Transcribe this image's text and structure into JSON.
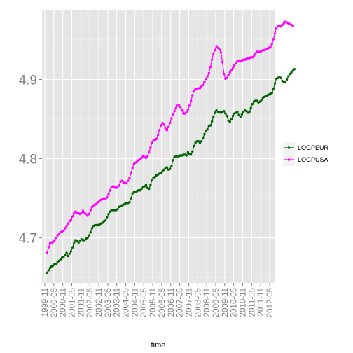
{
  "chart_data": {
    "type": "line",
    "title": "",
    "xlabel": "time",
    "ylabel": "",
    "ylim": [
      4.643,
      4.988
    ],
    "y_ticks": [
      "4.7",
      "4.8",
      "4.9"
    ],
    "y_tick_values": [
      4.7,
      4.8,
      4.9
    ],
    "x_ticks": [
      "1999-11",
      "2000-05",
      "2000-11",
      "2001-05",
      "2001-11",
      "2002-05",
      "2002-11",
      "2003-05",
      "2003-11",
      "2004-05",
      "2004-11",
      "2005-05",
      "2005-11",
      "2006-05",
      "2006-11",
      "2007-05",
      "2007-11",
      "2008-05",
      "2008-11",
      "2009-05",
      "2009-11",
      "2010-05",
      "2010-11",
      "2011-05",
      "2011-11",
      "2012-05"
    ],
    "grid": true,
    "legend_position": "right",
    "markers": true,
    "series": [
      {
        "name": "LOGPEUR",
        "color": "#006400",
        "values": [
          4.656,
          4.659,
          4.662,
          4.664,
          4.665,
          4.667,
          4.667,
          4.669,
          4.671,
          4.673,
          4.675,
          4.676,
          4.678,
          4.681,
          4.677,
          4.68,
          4.683,
          4.688,
          4.694,
          4.697,
          4.696,
          4.694,
          4.696,
          4.698,
          4.697,
          4.697,
          4.699,
          4.7,
          4.703,
          4.707,
          4.712,
          4.715,
          4.716,
          4.716,
          4.716,
          4.717,
          4.718,
          4.719,
          4.721,
          4.722,
          4.726,
          4.73,
          4.733,
          4.735,
          4.735,
          4.735,
          4.735,
          4.736,
          4.739,
          4.74,
          4.741,
          4.742,
          4.743,
          4.744,
          4.744,
          4.745,
          4.75,
          4.756,
          4.758,
          4.758,
          4.759,
          4.76,
          4.76,
          4.762,
          4.764,
          4.765,
          4.767,
          4.763,
          4.762,
          4.767,
          4.773,
          4.776,
          4.777,
          4.779,
          4.78,
          4.781,
          4.782,
          4.784,
          4.786,
          4.788,
          4.789,
          4.786,
          4.787,
          4.791,
          4.798,
          4.802,
          4.803,
          4.803,
          4.803,
          4.804,
          4.804,
          4.805,
          4.805,
          4.804,
          4.808,
          4.806,
          4.805,
          4.809,
          4.816,
          4.82,
          4.822,
          4.822,
          4.82,
          4.822,
          4.826,
          4.831,
          4.835,
          4.837,
          4.841,
          4.842,
          4.847,
          4.853,
          4.858,
          4.861,
          4.859,
          4.859,
          4.858,
          4.859,
          4.86,
          4.857,
          4.854,
          4.848,
          4.846,
          4.85,
          4.854,
          4.857,
          4.858,
          4.859,
          4.855,
          4.853,
          4.856,
          4.859,
          4.861,
          4.86,
          4.858,
          4.859,
          4.864,
          4.869,
          4.872,
          4.873,
          4.873,
          4.871,
          4.872,
          4.874,
          4.877,
          4.878,
          4.879,
          4.88,
          4.881,
          4.882,
          4.883,
          4.888,
          4.895,
          4.901,
          4.902,
          4.903,
          4.902,
          4.898,
          4.897,
          4.897,
          4.9,
          4.904,
          4.907,
          4.909,
          4.911,
          4.913
        ]
      },
      {
        "name": "LOGPUSA",
        "color": "#ff00ff",
        "values": [
          4.681,
          4.688,
          4.693,
          4.694,
          4.695,
          4.697,
          4.7,
          4.703,
          4.705,
          4.707,
          4.708,
          4.709,
          4.712,
          4.715,
          4.718,
          4.721,
          4.723,
          4.727,
          4.731,
          4.733,
          4.732,
          4.731,
          4.73,
          4.732,
          4.734,
          4.732,
          4.73,
          4.728,
          4.73,
          4.735,
          4.739,
          4.741,
          4.742,
          4.743,
          4.745,
          4.747,
          4.748,
          4.749,
          4.75,
          4.749,
          4.751,
          4.755,
          4.76,
          4.764,
          4.765,
          4.764,
          4.763,
          4.764,
          4.766,
          4.771,
          4.772,
          4.77,
          4.769,
          4.769,
          4.772,
          4.776,
          4.782,
          4.788,
          4.793,
          4.795,
          4.796,
          4.798,
          4.799,
          4.801,
          4.803,
          4.802,
          4.801,
          4.803,
          4.808,
          4.814,
          4.82,
          4.823,
          4.823,
          4.825,
          4.83,
          4.836,
          4.842,
          4.845,
          4.843,
          4.838,
          4.836,
          4.84,
          4.845,
          4.851,
          4.856,
          4.86,
          4.864,
          4.867,
          4.868,
          4.865,
          4.861,
          4.857,
          4.857,
          4.859,
          4.862,
          4.867,
          4.873,
          4.88,
          4.886,
          4.888,
          4.888,
          4.889,
          4.889,
          4.891,
          4.893,
          4.897,
          4.901,
          4.904,
          4.908,
          4.916,
          4.925,
          4.933,
          4.937,
          4.942,
          4.94,
          4.938,
          4.934,
          4.922,
          4.907,
          4.901,
          4.902,
          4.906,
          4.909,
          4.912,
          4.915,
          4.918,
          4.921,
          4.923,
          4.923,
          4.923,
          4.924,
          4.925,
          4.925,
          4.926,
          4.927,
          4.927,
          4.928,
          4.928,
          4.93,
          4.933,
          4.935,
          4.935,
          4.935,
          4.936,
          4.937,
          4.937,
          4.938,
          4.939,
          4.94,
          4.941,
          4.945,
          4.951,
          4.958,
          4.965,
          4.968,
          4.968,
          4.967,
          4.969,
          4.971,
          4.973,
          4.972,
          4.971,
          4.97,
          4.969,
          4.968
        ]
      }
    ]
  }
}
